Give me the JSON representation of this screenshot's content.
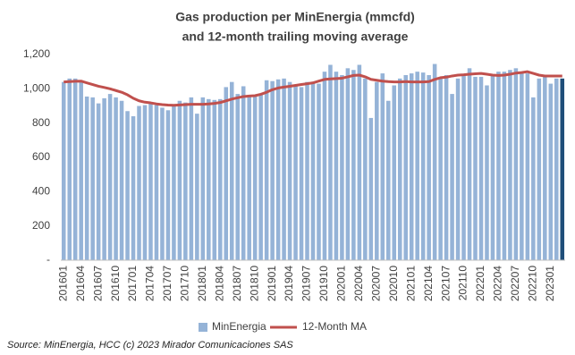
{
  "chart_data": {
    "type": "combo",
    "title": [
      "Gas production per MinEnergia (mmcfd)",
      "and 12-month trailing moving average"
    ],
    "source": "Source:  MinEnergia,  HCC (c) 2023 Mirador Comunicaciones SAS",
    "categories": [
      "201601",
      null,
      null,
      "201604",
      null,
      null,
      "201607",
      null,
      null,
      "201610",
      null,
      null,
      "201701",
      null,
      null,
      "201704",
      null,
      null,
      "201707",
      null,
      null,
      "201710",
      null,
      null,
      "201801",
      null,
      null,
      "201804",
      null,
      null,
      "201807",
      null,
      null,
      "201810",
      null,
      null,
      "201901",
      null,
      null,
      "201904",
      null,
      null,
      "201907",
      null,
      null,
      "201910",
      null,
      null,
      "202001",
      null,
      null,
      "202004",
      null,
      null,
      "202007",
      null,
      null,
      "202010",
      null,
      null,
      "202101",
      null,
      null,
      "202104",
      null,
      null,
      "202107",
      null,
      null,
      "202110",
      null,
      null,
      "202201",
      null,
      null,
      "202204",
      null,
      null,
      "202207",
      null,
      null,
      "202210",
      null,
      null,
      "202301",
      null,
      null
    ],
    "series": [
      {
        "name": "MinEnergia",
        "type": "bar",
        "color": "#95b3d7",
        "highlight_last_color": "#1f4e79",
        "values": [
          1040,
          1060,
          1060,
          1040,
          955,
          950,
          915,
          945,
          970,
          950,
          930,
          870,
          840,
          900,
          905,
          920,
          905,
          890,
          875,
          900,
          930,
          920,
          950,
          855,
          950,
          940,
          935,
          940,
          1010,
          1040,
          970,
          1015,
          960,
          960,
          970,
          1050,
          1045,
          1055,
          1060,
          1040,
          1020,
          1010,
          1040,
          1040,
          1030,
          1100,
          1140,
          1100,
          1080,
          1120,
          1110,
          1140,
          1060,
          830,
          1040,
          1090,
          930,
          1020,
          1060,
          1080,
          1090,
          1100,
          1095,
          1080,
          1145,
          1060,
          1080,
          970,
          1060,
          1080,
          1120,
          1070,
          1070,
          1020,
          1080,
          1100,
          1100,
          1110,
          1120,
          1100,
          1090,
          950,
          1060,
          1070,
          1030,
          1060,
          1060
        ]
      },
      {
        "name": "12-Month MA",
        "type": "line",
        "color": "#c0504d",
        "values": [
          1040,
          1042,
          1044,
          1045,
          1035,
          1025,
          1015,
          1008,
          1000,
          990,
          980,
          965,
          945,
          930,
          922,
          918,
          912,
          908,
          905,
          904,
          906,
          908,
          910,
          910,
          910,
          912,
          915,
          920,
          930,
          940,
          948,
          955,
          958,
          960,
          968,
          980,
          995,
          1005,
          1010,
          1015,
          1020,
          1025,
          1030,
          1035,
          1045,
          1055,
          1058,
          1060,
          1062,
          1070,
          1078,
          1080,
          1070,
          1055,
          1050,
          1045,
          1042,
          1040,
          1040,
          1042,
          1040,
          1040,
          1040,
          1042,
          1055,
          1065,
          1068,
          1075,
          1080,
          1082,
          1085,
          1088,
          1090,
          1085,
          1080,
          1078,
          1080,
          1085,
          1092,
          1095,
          1100,
          1090,
          1080,
          1075,
          1075,
          1075,
          1075
        ]
      }
    ],
    "ylim": [
      0,
      1200
    ],
    "yticks": [
      {
        "value": 0,
        "label": "-"
      },
      200,
      400,
      600,
      800,
      {
        "value": 1000,
        "label": "1,000"
      },
      {
        "value": 1200,
        "label": "1,200"
      }
    ],
    "grid": false,
    "legend": "bottom"
  }
}
